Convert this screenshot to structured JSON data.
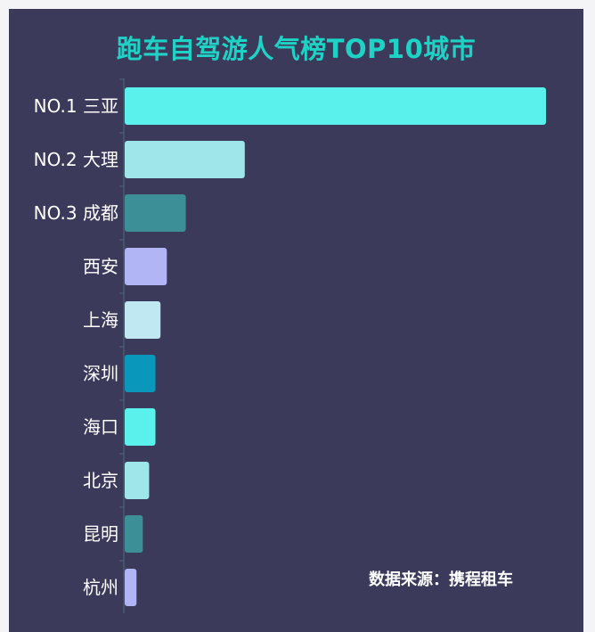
{
  "chart_data": {
    "type": "bar",
    "orientation": "horizontal",
    "title": "跑车自驾游人气榜TOP10城市",
    "categories": [
      "NO.1 三亚",
      "NO.2 大理",
      "NO.3 成都",
      "西安",
      "上海",
      "深圳",
      "海口",
      "北京",
      "昆明",
      "杭州"
    ],
    "values": [
      100,
      28.5,
      14.5,
      10,
      8.5,
      7.3,
      7.3,
      5.8,
      4.3,
      2.8
    ],
    "colors": [
      "#5af0ec",
      "#9ee6ea",
      "#3c8f97",
      "#b1b4f5",
      "#bfe8f3",
      "#0997bb",
      "#5af0ec",
      "#9ee6ea",
      "#3c8f97",
      "#b1b4f5"
    ],
    "xlim": [
      0,
      100
    ],
    "grid": false,
    "legend": "none",
    "source": "数据来源：携程租车"
  }
}
